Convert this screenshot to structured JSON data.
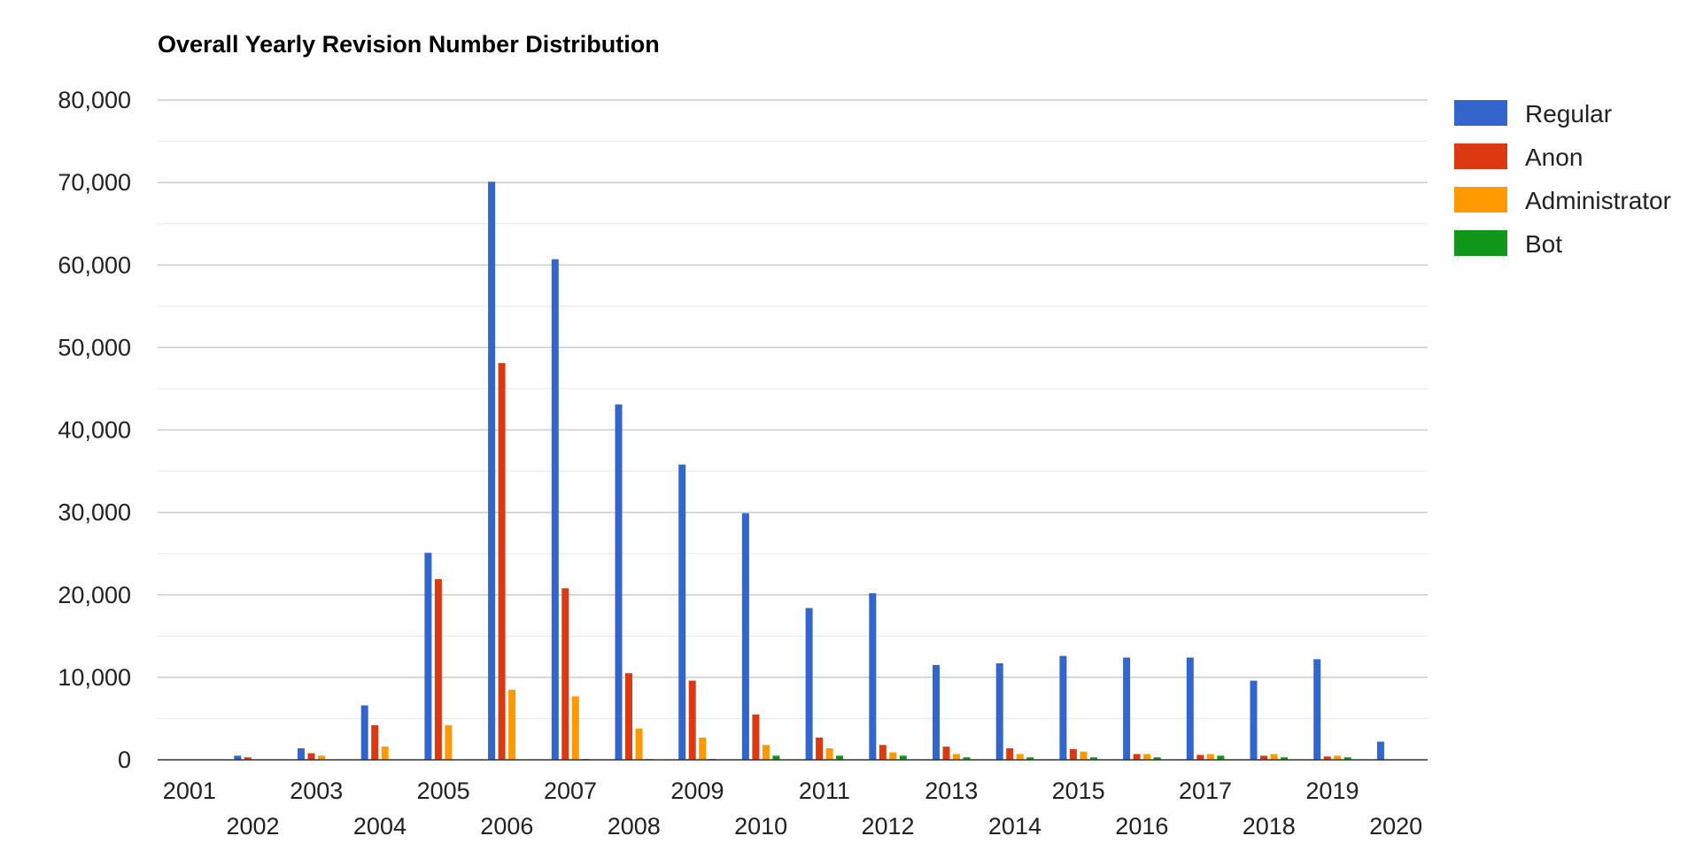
{
  "chart_data": {
    "type": "bar",
    "title": "Overall Yearly Revision Number Distribution",
    "xlabel": "",
    "ylabel": "",
    "ylim": [
      0,
      80000
    ],
    "yticks": [
      0,
      10000,
      20000,
      30000,
      40000,
      50000,
      60000,
      70000,
      80000
    ],
    "ytick_labels": [
      "0",
      "10,000",
      "20,000",
      "30,000",
      "40,000",
      "50,000",
      "60,000",
      "70,000",
      "80,000"
    ],
    "grid": true,
    "legend_position": "right",
    "categories": [
      "2001",
      "2002",
      "2003",
      "2004",
      "2005",
      "2006",
      "2007",
      "2008",
      "2009",
      "2010",
      "2011",
      "2012",
      "2013",
      "2014",
      "2015",
      "2016",
      "2017",
      "2018",
      "2019",
      "2020"
    ],
    "series": [
      {
        "name": "Regular",
        "color": "#3366cc",
        "values": [
          0,
          500,
          1400,
          6600,
          25100,
          70100,
          60700,
          43100,
          35800,
          29900,
          18400,
          20200,
          11500,
          11700,
          12600,
          12400,
          12400,
          9600,
          12200,
          2200
        ]
      },
      {
        "name": "Anon",
        "color": "#dc3912",
        "values": [
          0,
          300,
          800,
          4200,
          21900,
          48100,
          20800,
          10500,
          9600,
          5500,
          2700,
          1800,
          1600,
          1400,
          1300,
          700,
          600,
          500,
          400,
          0
        ]
      },
      {
        "name": "Administrator",
        "color": "#ff9900",
        "values": [
          0,
          0,
          500,
          1600,
          4200,
          8500,
          7700,
          3800,
          2700,
          1800,
          1400,
          900,
          700,
          700,
          1000,
          700,
          700,
          700,
          500,
          0
        ]
      },
      {
        "name": "Bot",
        "color": "#109618",
        "values": [
          0,
          0,
          0,
          0,
          0,
          0,
          100,
          100,
          100,
          500,
          500,
          500,
          300,
          300,
          300,
          300,
          500,
          300,
          300,
          0
        ]
      }
    ]
  }
}
